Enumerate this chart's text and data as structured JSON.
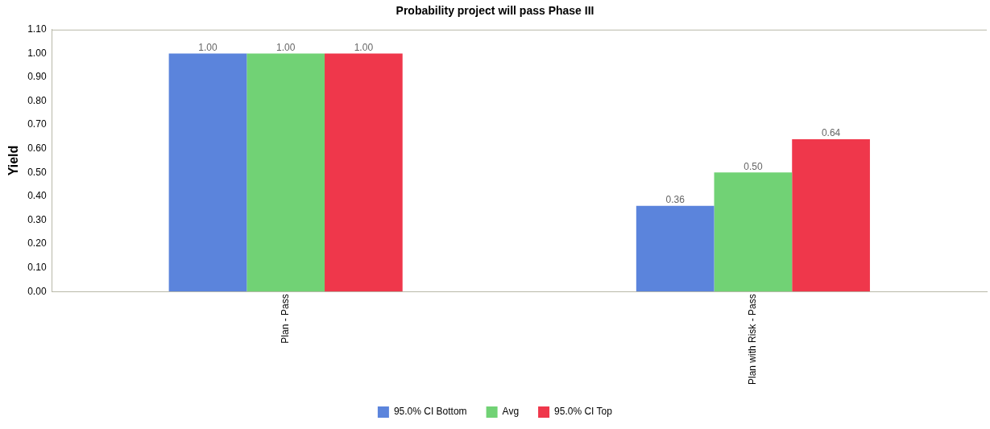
{
  "chart_data": {
    "type": "bar",
    "title": "Probability project will pass Phase III",
    "ylabel": "Yield",
    "categories": [
      "Plan - Pass",
      "Plan with Risk - Pass"
    ],
    "series": [
      {
        "name": "95.0% CI Bottom",
        "color": "#5b84dc",
        "values": [
          1.0,
          0.36
        ],
        "value_labels": [
          "1.00",
          "0.36"
        ]
      },
      {
        "name": "Avg",
        "color": "#71d275",
        "values": [
          1.0,
          0.5
        ],
        "value_labels": [
          "1.00",
          "0.50"
        ]
      },
      {
        "name": "95.0% CI Top",
        "color": "#ef374b",
        "values": [
          1.0,
          0.64
        ],
        "value_labels": [
          "1.00",
          "0.64"
        ]
      }
    ],
    "ylim": [
      0,
      1.1
    ],
    "yticks": [
      {
        "value": 0,
        "label": "0.00"
      },
      {
        "value": 0.1,
        "label": "0.10"
      },
      {
        "value": 0.2,
        "label": "0.20"
      },
      {
        "value": 0.3,
        "label": "0.30"
      },
      {
        "value": 0.4,
        "label": "0.40"
      },
      {
        "value": 0.5,
        "label": "0.50"
      },
      {
        "value": 0.6,
        "label": "0.60"
      },
      {
        "value": 0.7,
        "label": "0.70"
      },
      {
        "value": 0.8,
        "label": "0.80"
      },
      {
        "value": 0.9,
        "label": "0.90"
      },
      {
        "value": 1.0,
        "label": "1.00"
      },
      {
        "value": 1.1,
        "label": "1.10"
      }
    ],
    "grid": false,
    "legend": "bottom"
  }
}
